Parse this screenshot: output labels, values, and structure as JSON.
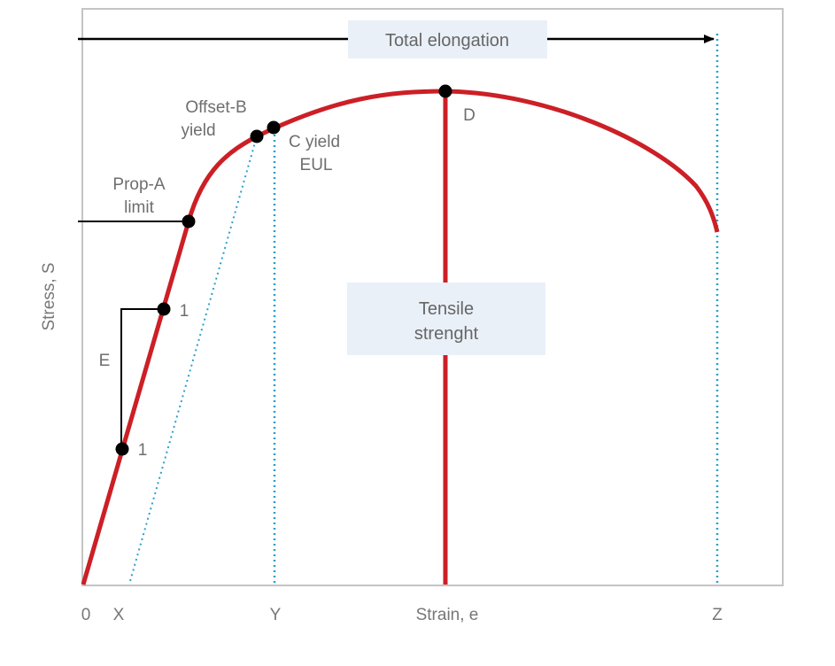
{
  "colors": {
    "curve": "#cc1f26",
    "frame": "#c4c4c4",
    "dotted": "#2a9fcf",
    "line": "#000000",
    "box_fill": "#e9f0f8",
    "text": "#6e6e6e"
  },
  "axes": {
    "y_label": "Stress, S",
    "x_label": "Strain, e",
    "x_ticks": {
      "origin": "0",
      "x": "X",
      "y": "Y",
      "z": "Z"
    }
  },
  "banner": {
    "text": "Total elongation"
  },
  "tensile_box": {
    "line1": "Tensile",
    "line2": "strenght"
  },
  "points": {
    "prop_a": {
      "line1": "Prop-A",
      "line2": "limit"
    },
    "offset_b": {
      "line1": "Offset-B",
      "line2": "yield"
    },
    "c_yield": {
      "line1": "C yield",
      "line2": "EUL"
    },
    "d": {
      "label": "D"
    }
  },
  "modulus": {
    "label": "E",
    "step_upper": "1",
    "step_lower": "1"
  }
}
